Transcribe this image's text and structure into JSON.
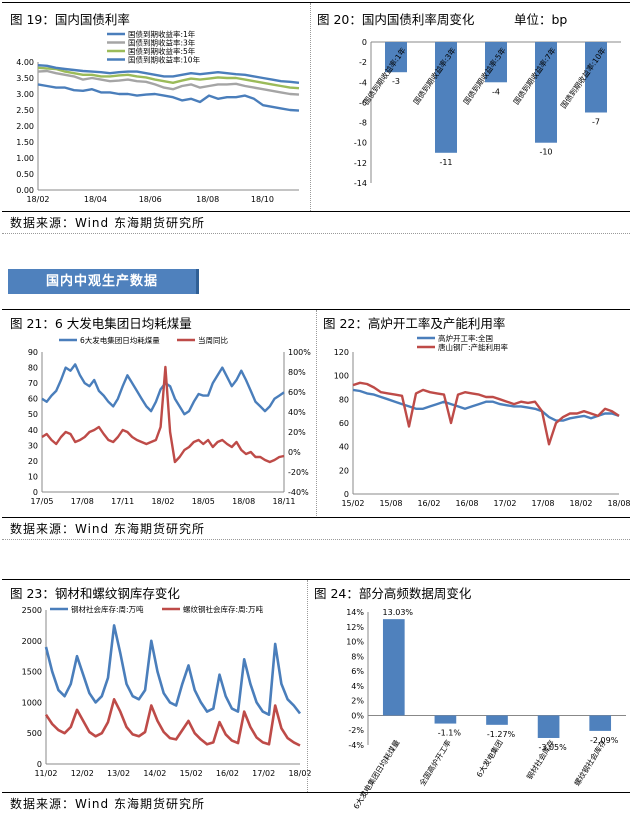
{
  "section_header": "国内中观生产数据",
  "source_text": "数据来源：Wind   东海期货研究所",
  "colors": {
    "blue": "#4a7ebb",
    "red": "#be4b48",
    "green": "#9bbb59",
    "gray": "#a5a5a5",
    "bar": "#4f81bd"
  },
  "chart_data": [
    {
      "id": "fig19",
      "type": "line",
      "title": "图 19：国内国债利率",
      "x_ticks": [
        "18/02",
        "18/04",
        "18/06",
        "18/08",
        "18/10"
      ],
      "ylim": [
        0,
        4.0
      ],
      "y_ticks": [
        "0.00",
        "0.50",
        "1.00",
        "1.50",
        "2.00",
        "2.50",
        "3.00",
        "3.50",
        "4.00"
      ],
      "legend_position": "top-center",
      "series": [
        {
          "name": "国债到期收益率:1年",
          "color": "#4a7ebb",
          "values": [
            3.3,
            3.25,
            3.2,
            3.2,
            3.12,
            3.1,
            3.15,
            3.05,
            3.05,
            3.0,
            3.0,
            2.95,
            2.98,
            3.0,
            2.95,
            2.9,
            2.8,
            2.85,
            2.75,
            2.95,
            2.85,
            2.9,
            2.9,
            2.95,
            2.85,
            2.65,
            2.6,
            2.55,
            2.5,
            2.48
          ]
        },
        {
          "name": "国债到期收益率:3年",
          "color": "#a5a5a5",
          "values": [
            3.7,
            3.72,
            3.65,
            3.6,
            3.55,
            3.45,
            3.5,
            3.45,
            3.4,
            3.42,
            3.45,
            3.4,
            3.38,
            3.3,
            3.2,
            3.15,
            3.25,
            3.3,
            3.2,
            3.25,
            3.3,
            3.3,
            3.32,
            3.25,
            3.2,
            3.15,
            3.1,
            3.05,
            3.0,
            2.98
          ]
        },
        {
          "name": "国债到期收益率:5年",
          "color": "#9bbb59",
          "values": [
            3.82,
            3.8,
            3.78,
            3.7,
            3.65,
            3.6,
            3.6,
            3.55,
            3.55,
            3.58,
            3.6,
            3.55,
            3.52,
            3.45,
            3.4,
            3.35,
            3.42,
            3.48,
            3.45,
            3.48,
            3.52,
            3.5,
            3.5,
            3.45,
            3.4,
            3.35,
            3.3,
            3.25,
            3.2,
            3.18
          ]
        },
        {
          "name": "国债到期收益率:10年",
          "color": "#4a7ebb",
          "values": [
            3.9,
            3.88,
            3.82,
            3.78,
            3.75,
            3.72,
            3.7,
            3.68,
            3.65,
            3.68,
            3.7,
            3.7,
            3.65,
            3.6,
            3.55,
            3.55,
            3.6,
            3.65,
            3.62,
            3.65,
            3.68,
            3.65,
            3.62,
            3.6,
            3.55,
            3.5,
            3.45,
            3.4,
            3.38,
            3.35
          ]
        }
      ]
    },
    {
      "id": "fig20",
      "type": "bar",
      "title": "图 20：国内国债利率周变化",
      "unit_label": "单位：bp",
      "categories": [
        "国债到期收益率:1年",
        "国债到期收益率:3年",
        "国债到期收益率:5年",
        "国债到期收益率:7年",
        "国债到期收益率:10年"
      ],
      "values": [
        -3,
        -11,
        -4,
        -10,
        -7
      ],
      "data_labels": [
        "-3",
        "-11",
        "-4",
        "-10",
        "-7"
      ],
      "ylim": [
        -14,
        0
      ],
      "y_ticks": [
        "0",
        "-2",
        "-4",
        "-6",
        "-8",
        "-10",
        "-12",
        "-14"
      ]
    },
    {
      "id": "fig21",
      "type": "line",
      "title": "图 21：6 大发电集团日均耗煤量",
      "x_ticks": [
        "17/05",
        "17/08",
        "17/11",
        "18/02",
        "18/05",
        "18/08",
        "18/11"
      ],
      "ylim_left": [
        0,
        90
      ],
      "y_ticks_left": [
        "0",
        "10",
        "20",
        "30",
        "40",
        "50",
        "60",
        "70",
        "80",
        "90"
      ],
      "ylim_right": [
        -40,
        100
      ],
      "y_ticks_right": [
        "-40%",
        "-20%",
        "0%",
        "20%",
        "40%",
        "60%",
        "80%",
        "100%"
      ],
      "legend_position": "top",
      "series": [
        {
          "name": "6大发电集团日均耗煤量",
          "axis": "left",
          "color": "#4a7ebb",
          "values": [
            60,
            58,
            62,
            65,
            72,
            80,
            78,
            82,
            75,
            70,
            68,
            72,
            65,
            62,
            58,
            55,
            60,
            68,
            75,
            70,
            65,
            60,
            55,
            52,
            58,
            66,
            70,
            68,
            60,
            55,
            50,
            52,
            58,
            63,
            62,
            62,
            70,
            75,
            80,
            74,
            68,
            72,
            78,
            72,
            65,
            58,
            55,
            52,
            55,
            60,
            62,
            64
          ]
        },
        {
          "name": "当周同比",
          "axis": "right",
          "color": "#be4b48",
          "values": [
            15,
            18,
            12,
            8,
            15,
            20,
            18,
            10,
            12,
            15,
            20,
            22,
            25,
            18,
            12,
            10,
            15,
            22,
            20,
            15,
            12,
            10,
            8,
            10,
            12,
            25,
            85,
            20,
            -10,
            -5,
            2,
            5,
            10,
            12,
            8,
            12,
            5,
            10,
            12,
            8,
            5,
            10,
            2,
            -2,
            0,
            -5,
            -5,
            -8,
            -10,
            -8,
            -5,
            -4
          ]
        }
      ]
    },
    {
      "id": "fig22",
      "type": "line",
      "title": "图 22：高炉开工率及产能利用率",
      "x_ticks": [
        "15/02",
        "15/08",
        "16/02",
        "16/08",
        "17/02",
        "17/08",
        "18/02",
        "18/08"
      ],
      "ylim": [
        0,
        120
      ],
      "y_ticks": [
        "0",
        "20",
        "40",
        "60",
        "80",
        "100",
        "120"
      ],
      "legend_position": "top-center",
      "series": [
        {
          "name": "高炉开工率:全国",
          "color": "#4a7ebb",
          "values": [
            88,
            87,
            85,
            84,
            82,
            80,
            78,
            76,
            74,
            72,
            72,
            74,
            76,
            78,
            76,
            74,
            72,
            74,
            76,
            78,
            78,
            76,
            75,
            74,
            74,
            73,
            72,
            70,
            65,
            62,
            62,
            64,
            65,
            66,
            64,
            66,
            68,
            68,
            66
          ]
        },
        {
          "name": "唐山钢厂:产能利用率",
          "color": "#be4b48",
          "values": [
            92,
            94,
            93,
            90,
            86,
            85,
            84,
            83,
            57,
            85,
            88,
            86,
            85,
            84,
            60,
            84,
            86,
            85,
            84,
            82,
            82,
            80,
            78,
            76,
            78,
            77,
            78,
            70,
            42,
            60,
            65,
            68,
            68,
            70,
            68,
            66,
            72,
            70,
            66
          ]
        }
      ]
    },
    {
      "id": "fig23",
      "type": "line",
      "title": "图 23：钢材和螺纹钢库存变化",
      "x_ticks": [
        "11/02",
        "12/02",
        "13/02",
        "14/02",
        "15/02",
        "16/02",
        "17/02",
        "18/02"
      ],
      "ylim": [
        0,
        2500
      ],
      "y_ticks": [
        "0",
        "500",
        "1000",
        "1500",
        "2000",
        "2500"
      ],
      "legend_position": "top",
      "series": [
        {
          "name": "钢材社会库存:周:万吨",
          "color": "#4a7ebb",
          "values": [
            1900,
            1500,
            1200,
            1100,
            1300,
            1750,
            1450,
            1150,
            1000,
            1100,
            1400,
            2250,
            1800,
            1300,
            1100,
            1050,
            1200,
            2000,
            1500,
            1150,
            1000,
            950,
            1300,
            1600,
            1200,
            1000,
            850,
            900,
            1450,
            1100,
            900,
            850,
            1700,
            1300,
            1000,
            850,
            800,
            1950,
            1300,
            1050,
            950,
            820
          ]
        },
        {
          "name": "螺纹钢社会库存:周:万吨",
          "color": "#be4b48",
          "values": [
            800,
            650,
            550,
            500,
            600,
            880,
            700,
            520,
            450,
            500,
            680,
            1050,
            850,
            600,
            480,
            450,
            520,
            950,
            700,
            520,
            420,
            400,
            550,
            700,
            500,
            400,
            320,
            350,
            680,
            480,
            380,
            340,
            850,
            600,
            430,
            350,
            320,
            950,
            580,
            420,
            350,
            300
          ]
        }
      ]
    },
    {
      "id": "fig24",
      "type": "bar",
      "title": "图 24：部分高频数据周变化",
      "categories": [
        "6大发电集团日均耗煤量",
        "全国高炉开工率",
        "6大发电集团",
        "钢材社会库存",
        "螺纹钢社会库存"
      ],
      "values": [
        13.03,
        -1.1,
        -1.27,
        -3.05,
        -2.09
      ],
      "data_labels": [
        "13.03%",
        "-1.1%",
        "-1.27%",
        "-3.05%",
        "-2.09%"
      ],
      "ylim": [
        -4,
        14
      ],
      "y_ticks": [
        "14%",
        "12%",
        "10%",
        "8%",
        "6%",
        "4%",
        "2%",
        "0%",
        "-2%",
        "-4%"
      ]
    }
  ]
}
